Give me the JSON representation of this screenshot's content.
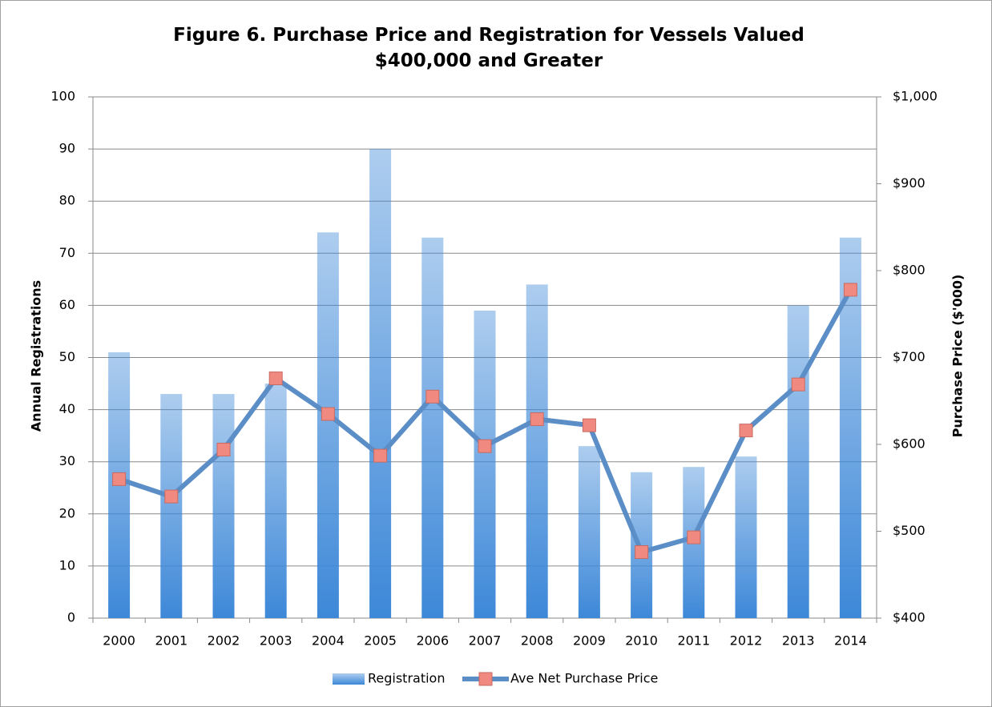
{
  "chart_data": {
    "type": "bar-line",
    "title": "Figure 6. Purchase Price and Registration for Vessels Valued $400,000 and Greater",
    "y_label": "Annual Registrations",
    "y2_label": "Purchase Price ($'000)",
    "categories": [
      "2000",
      "2001",
      "2002",
      "2003",
      "2004",
      "2005",
      "2006",
      "2007",
      "2008",
      "2009",
      "2010",
      "2011",
      "2012",
      "2013",
      "2014"
    ],
    "series": [
      {
        "name": "Registration",
        "type": "bar",
        "color": "#3d88d8",
        "values": [
          51,
          43,
          43,
          45,
          74,
          90,
          73,
          59,
          64,
          33,
          28,
          29,
          31,
          60,
          73
        ]
      },
      {
        "name": "Ave Net Purchase Price",
        "type": "line",
        "axis": "y2",
        "color": "#5b8ec6",
        "marker_color": "#f08a80",
        "values": [
          560,
          540,
          594,
          676,
          635,
          587,
          655,
          598,
          629,
          622,
          476,
          493,
          616,
          669,
          778
        ]
      }
    ],
    "ylim": [
      0,
      100
    ],
    "yticks": [
      0,
      10,
      20,
      30,
      40,
      50,
      60,
      70,
      80,
      90,
      100
    ],
    "y2lim": [
      400,
      1000
    ],
    "y2ticks": [
      {
        "value": 400,
        "label": "$400"
      },
      {
        "value": 500,
        "label": "$500"
      },
      {
        "value": 600,
        "label": "$600"
      },
      {
        "value": 700,
        "label": "$700"
      },
      {
        "value": 800,
        "label": "$800"
      },
      {
        "value": 900,
        "label": "$900"
      },
      {
        "value": 1000,
        "label": "$1,000"
      }
    ],
    "grid": true,
    "legend": "bottom"
  }
}
